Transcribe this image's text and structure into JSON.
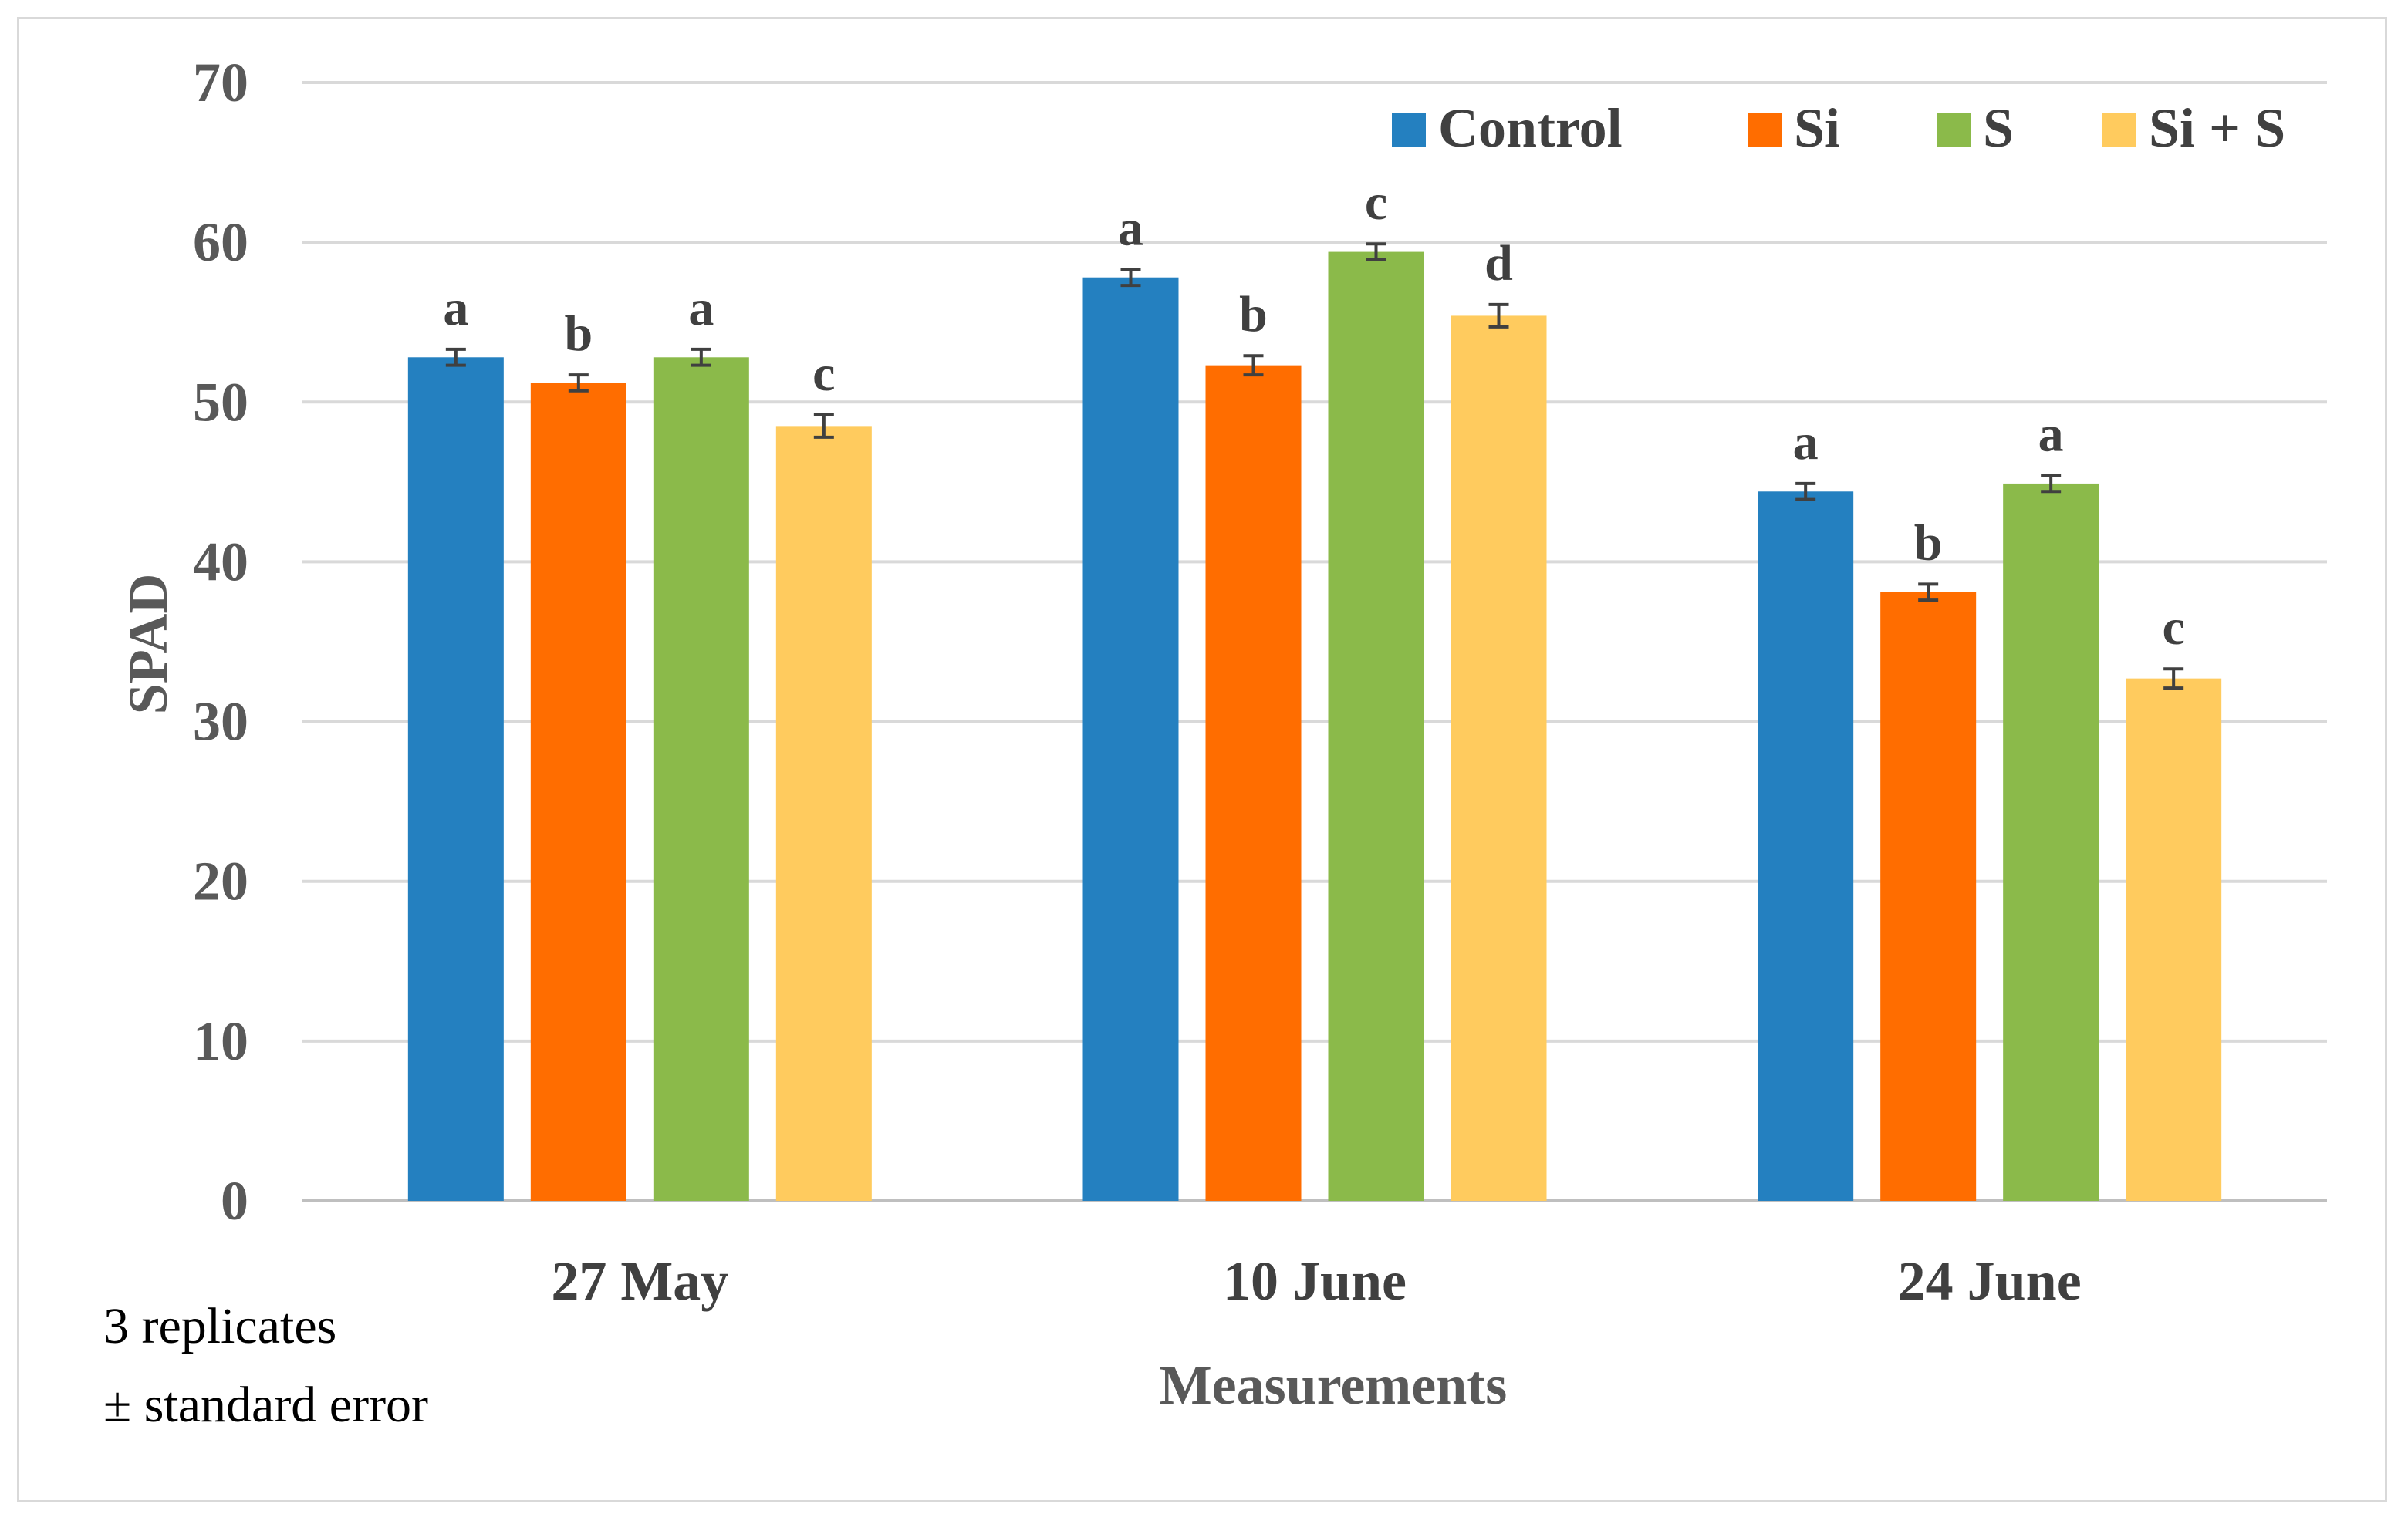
{
  "chart_data": {
    "type": "bar",
    "categories": [
      "27 May",
      "10 June",
      "24 June"
    ],
    "series": [
      {
        "name": "Control",
        "color": "#2480c0",
        "values": [
          52.8,
          57.8,
          44.4
        ],
        "errors": [
          0.5,
          0.5,
          0.5
        ],
        "letters": [
          "a",
          "a",
          "a"
        ]
      },
      {
        "name": "Si",
        "color": "#ff6d00",
        "values": [
          51.2,
          52.3,
          38.1
        ],
        "errors": [
          0.5,
          0.6,
          0.5
        ],
        "letters": [
          "b",
          "b",
          "b"
        ]
      },
      {
        "name": "S",
        "color": "#8bba4a",
        "values": [
          52.8,
          59.4,
          44.9
        ],
        "errors": [
          0.5,
          0.5,
          0.5
        ],
        "letters": [
          "a",
          "c",
          "a"
        ]
      },
      {
        "name": "Si + S",
        "color": "#ffcb5e",
        "values": [
          48.5,
          55.4,
          32.7
        ],
        "errors": [
          0.7,
          0.7,
          0.6
        ],
        "letters": [
          "c",
          "d",
          "c"
        ]
      }
    ],
    "xlabel": "Measurements",
    "ylabel": "SPAD",
    "ylim": [
      0,
      70
    ],
    "yticks": [
      0,
      10,
      20,
      30,
      40,
      50,
      60,
      70
    ],
    "grid": true,
    "legend_position": "top-right",
    "note_lines": [
      "3 replicates",
      "± standard error"
    ]
  }
}
